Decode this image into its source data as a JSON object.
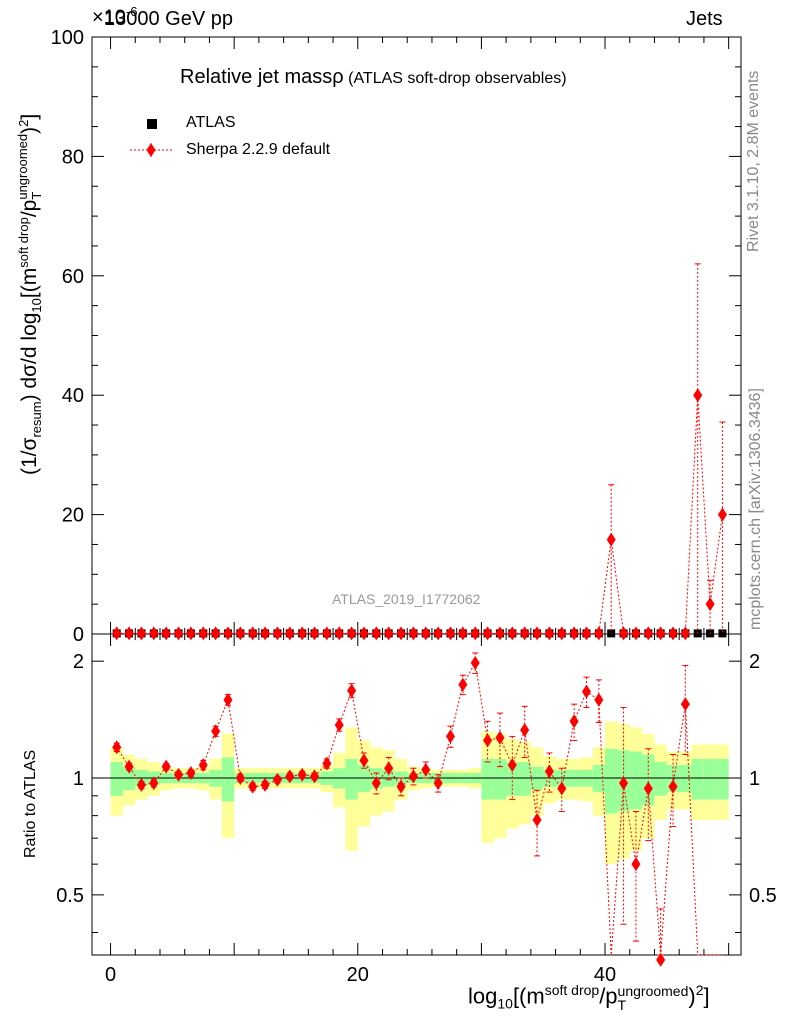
{
  "header": {
    "left_label": "13000 GeV pp",
    "right_label": "Jets",
    "y_exponent": "×10",
    "y_exponent_power": "-6"
  },
  "side_labels": {
    "rivet": "Rivet 3.1.10,  2.8M events",
    "mcplots": "mcplots.cern.ch [arXiv:1306.3436]"
  },
  "main_title": "Relative jet massρ",
  "main_subtitle": "(ATLAS soft-drop observables)",
  "analysis_id": "ATLAS_2019_I1772062",
  "legend": {
    "atlas": "ATLAS",
    "sherpa": "Sherpa 2.2.9 default"
  },
  "ylabel_main": {
    "p1": "(1/σ",
    "sub1": "resum",
    "p2": ") dσ/d log",
    "sub2": "10",
    "p3": "[(m",
    "sup3": "soft drop",
    "p4": "/p",
    "sub4": "T",
    "sup4": "ungroomed",
    "p5": ")",
    "sup5": "2",
    "p6": "]"
  },
  "ylabel_ratio": "Ratio to ATLAS",
  "xlabel": {
    "p1": "log",
    "sub1": "10",
    "p2": "[(m",
    "sup2": "soft drop",
    "p3": "/p",
    "sub3": "T",
    "sup3": "ungroomed",
    "p4": ")",
    "sup4": "2",
    "p5": "]"
  },
  "colors": {
    "sherpa": "#ff0000",
    "band_inner": "#99ff99",
    "band_outer": "#ffff99",
    "data": "#000000"
  },
  "chart_data": {
    "type": "scatter",
    "x": [
      0.5,
      1.5,
      2.5,
      3.5,
      4.5,
      5.5,
      6.5,
      7.5,
      8.5,
      9.5,
      10.5,
      11.5,
      12.5,
      13.5,
      14.5,
      15.5,
      16.5,
      17.5,
      18.5,
      19.5,
      20.5,
      21.5,
      22.5,
      23.5,
      24.5,
      25.5,
      26.5,
      27.5,
      28.5,
      29.5,
      30.5,
      31.5,
      32.5,
      33.5,
      34.5,
      35.5,
      36.5,
      37.5,
      38.5,
      39.5,
      40.5,
      41.5,
      42.5,
      43.5,
      44.5,
      45.5,
      46.5,
      47.5,
      48.5,
      49.5
    ],
    "xlim": [
      -1.5,
      51.0
    ],
    "main": {
      "ylim": [
        0,
        100
      ],
      "yticks": [
        0,
        20,
        40,
        60,
        80,
        100
      ],
      "atlas_values": [
        0.1,
        0.1,
        0.1,
        0.1,
        0.1,
        0.1,
        0.1,
        0.1,
        0.1,
        0.1,
        0.1,
        0.1,
        0.1,
        0.1,
        0.1,
        0.1,
        0.1,
        0.1,
        0.1,
        0.1,
        0.1,
        0.1,
        0.1,
        0.1,
        0.1,
        0.1,
        0.1,
        0.1,
        0.1,
        0.1,
        0.1,
        0.1,
        0.1,
        0.1,
        0.1,
        0.1,
        0.1,
        0.1,
        0.1,
        0.1,
        0.1,
        0.1,
        0.1,
        0.1,
        0.1,
        0.1,
        0.1,
        0.1,
        0.1,
        0.1
      ],
      "sherpa_values": [
        0.1,
        0.1,
        0.1,
        0.1,
        0.1,
        0.1,
        0.1,
        0.1,
        0.1,
        0.1,
        0.1,
        0.1,
        0.1,
        0.1,
        0.1,
        0.1,
        0.1,
        0.1,
        0.1,
        0.1,
        0.1,
        0.1,
        0.1,
        0.1,
        0.1,
        0.1,
        0.1,
        0.1,
        0.1,
        0.1,
        0.1,
        0.1,
        0.1,
        0.1,
        0.1,
        0.1,
        0.1,
        0.1,
        0.1,
        0.1,
        15.8,
        0.1,
        0.1,
        0.1,
        0.1,
        0.1,
        0.1,
        40,
        5,
        20
      ],
      "sherpa_err_low": [
        0,
        0,
        0,
        0,
        0,
        0,
        0,
        0,
        0,
        0,
        0,
        0,
        0,
        0,
        0,
        0,
        0,
        0,
        0,
        0,
        0,
        0,
        0,
        0,
        0,
        0,
        0,
        0,
        0,
        0,
        0,
        0,
        0,
        0,
        0,
        0,
        0,
        0,
        0,
        0,
        15.8,
        0,
        0,
        0,
        0,
        0,
        0,
        40,
        5,
        20
      ],
      "sherpa_err_high": [
        0,
        0,
        0,
        0,
        0,
        0,
        0,
        0,
        0,
        0,
        0,
        0,
        0,
        0,
        0,
        0,
        0,
        0,
        0,
        0,
        0,
        0,
        0,
        0,
        0,
        0,
        0,
        0,
        0,
        0,
        0,
        0,
        0,
        0,
        0,
        0,
        0,
        0,
        0,
        0,
        9.2,
        0,
        0,
        0,
        0,
        0,
        0,
        22,
        4,
        15.5
      ]
    },
    "ratio": {
      "ylim": [
        0.35,
        2.35
      ],
      "yticks": [
        0.5,
        1,
        2
      ],
      "sherpa_ratio": [
        1.2,
        1.07,
        0.96,
        0.97,
        1.07,
        1.02,
        1.03,
        1.08,
        1.32,
        1.59,
        1.0,
        0.95,
        0.96,
        0.99,
        1.01,
        1.02,
        1.01,
        1.09,
        1.37,
        1.68,
        1.11,
        0.97,
        1.06,
        0.95,
        1.01,
        1.05,
        0.97,
        1.28,
        1.74,
        1.98,
        1.25,
        1.27,
        1.08,
        1.33,
        0.78,
        1.04,
        0.94,
        1.4,
        1.67,
        1.59,
        0.0,
        0.97,
        0.6,
        0.94,
        0.34,
        0.95,
        1.55,
        0.0,
        0.0,
        0.0
      ],
      "sherpa_ratio_err": [
        0.03,
        0.02,
        0.02,
        0.02,
        0.02,
        0.02,
        0.02,
        0.03,
        0.04,
        0.05,
        0.02,
        0.02,
        0.02,
        0.02,
        0.02,
        0.02,
        0.02,
        0.03,
        0.05,
        0.07,
        0.05,
        0.06,
        0.07,
        0.05,
        0.05,
        0.05,
        0.05,
        0.08,
        0.1,
        0.12,
        0.15,
        0.2,
        0.2,
        0.2,
        0.15,
        0.12,
        0.12,
        0.15,
        0.15,
        0.2,
        0.0,
        0.55,
        0.22,
        0.25,
        0.12,
        0.2,
        0.4,
        0.0,
        0.0,
        0.0
      ],
      "band_inner": [
        0.1,
        0.07,
        0.05,
        0.04,
        0.03,
        0.03,
        0.03,
        0.03,
        0.05,
        0.13,
        0.03,
        0.03,
        0.03,
        0.03,
        0.03,
        0.03,
        0.03,
        0.04,
        0.06,
        0.12,
        0.08,
        0.06,
        0.05,
        0.04,
        0.03,
        0.03,
        0.03,
        0.03,
        0.03,
        0.03,
        0.12,
        0.12,
        0.1,
        0.1,
        0.07,
        0.05,
        0.05,
        0.05,
        0.05,
        0.08,
        0.19,
        0.18,
        0.17,
        0.15,
        0.1,
        0.08,
        0.08,
        0.12,
        0.12,
        0.12
      ],
      "band_outer": [
        0.2,
        0.15,
        0.12,
        0.1,
        0.07,
        0.06,
        0.06,
        0.07,
        0.12,
        0.3,
        0.06,
        0.06,
        0.06,
        0.06,
        0.06,
        0.06,
        0.06,
        0.08,
        0.16,
        0.35,
        0.25,
        0.2,
        0.18,
        0.12,
        0.07,
        0.06,
        0.05,
        0.05,
        0.05,
        0.06,
        0.32,
        0.3,
        0.26,
        0.24,
        0.2,
        0.14,
        0.12,
        0.12,
        0.13,
        0.2,
        0.4,
        0.38,
        0.35,
        0.3,
        0.22,
        0.17,
        0.17,
        0.22,
        0.22,
        0.22
      ]
    },
    "xticks": [
      0,
      20,
      40
    ]
  }
}
